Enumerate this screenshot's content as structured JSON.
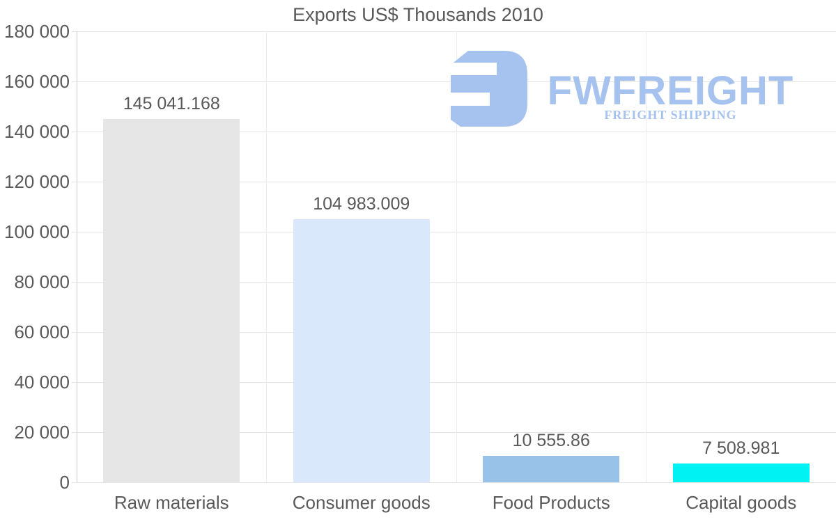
{
  "title": "Exports US$ Thousands 2010",
  "colors": {
    "background": "#ffffff",
    "text": "#595959",
    "gridline": "#e5e5e5",
    "axis": "#cccccc",
    "brand": "#a6c2ee"
  },
  "watermark": {
    "brand": "FWFREIGHT",
    "tagline": "FREIGHT SHIPPING",
    "icon": "fwfreight-logo-icon"
  },
  "chart_data": {
    "type": "bar",
    "title": "Exports US$ Thousands 2010",
    "categories": [
      "Raw materials",
      "Consumer goods",
      "Food Products",
      "Capital goods"
    ],
    "values": [
      145041.168,
      104983.009,
      10555.86,
      7508.981
    ],
    "value_labels": [
      "145 041.168",
      "104 983.009",
      "10 555.86",
      "7 508.981"
    ],
    "bar_colors": [
      "#e6e6e6",
      "#d9e8fb",
      "#99c2e8",
      "#00f2f2"
    ],
    "xlabel": "",
    "ylabel": "",
    "ylim": [
      0,
      180000
    ],
    "ytick_step": 20000,
    "ytick_labels": [
      "0",
      "20 000",
      "40 000",
      "60 000",
      "80 000",
      "100 000",
      "120 000",
      "140 000",
      "160 000",
      "180 000"
    ],
    "grid": true,
    "legend": "none"
  }
}
